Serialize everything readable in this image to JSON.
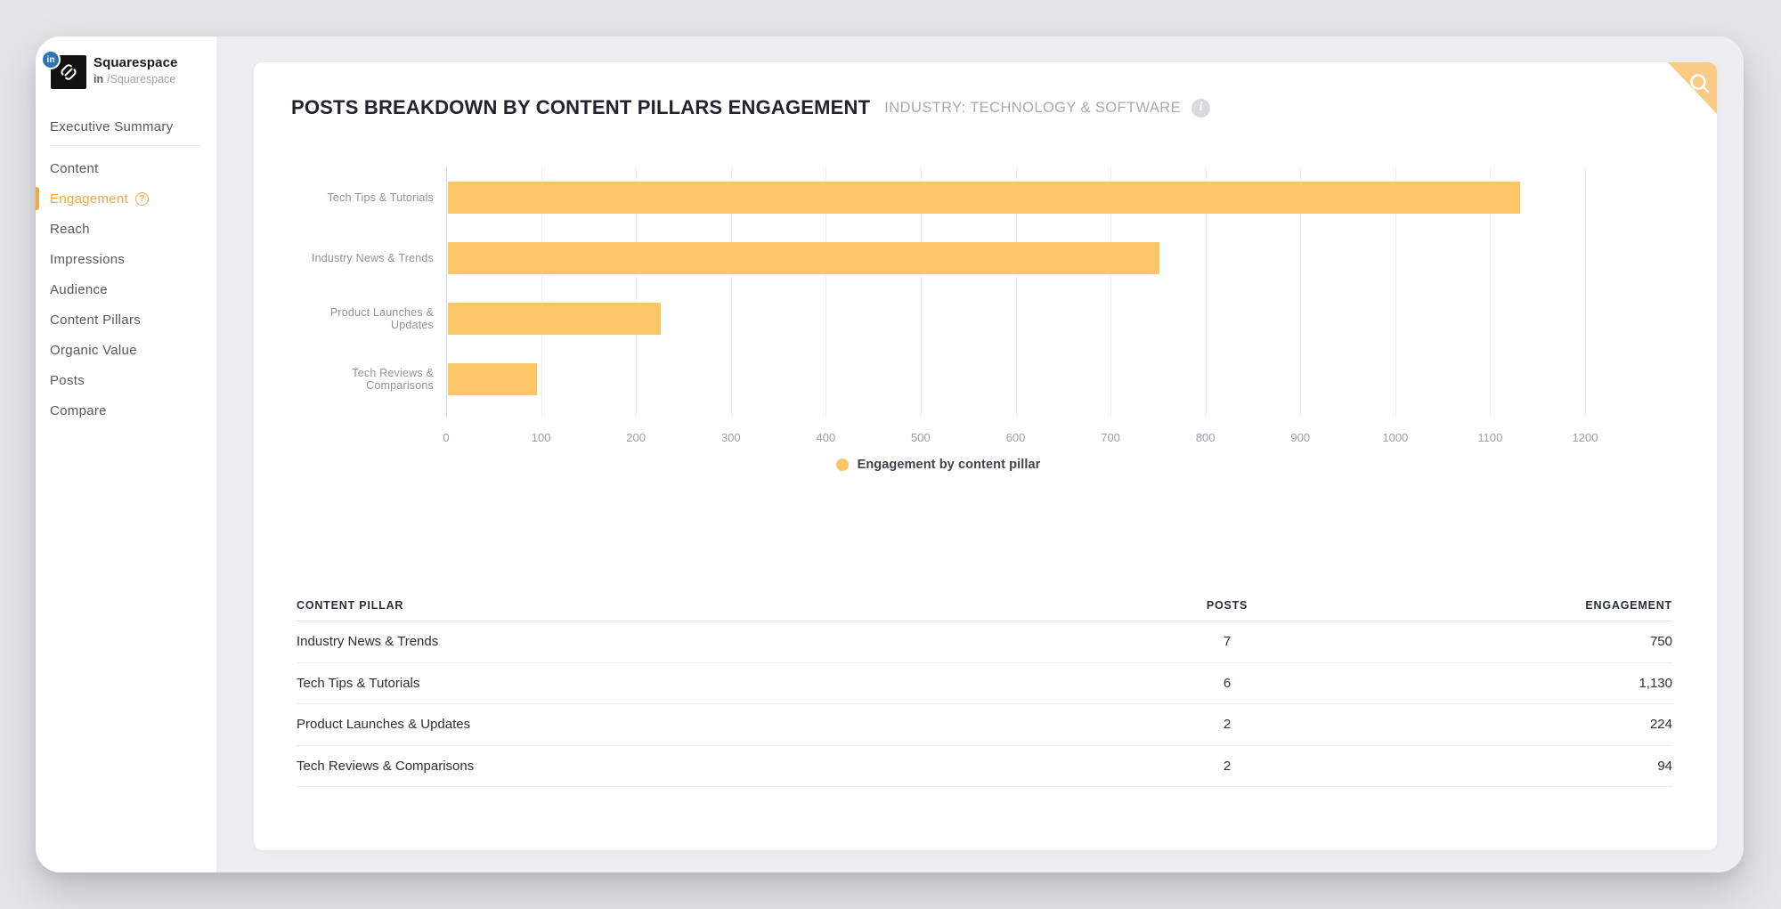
{
  "colors": {
    "bar_orange": "#FAC667",
    "active_orange": "#F4A73F",
    "corner_triangle": "#F8CB86",
    "linkedin_blue": "#2D77B5",
    "title_dark": "#21242C",
    "subtitle_gray": "#A6A9AF"
  },
  "icons": {
    "badge": "in",
    "info": "i",
    "help": "?",
    "search": "magnifier",
    "logo": "squarespace-mark"
  },
  "brand": {
    "name": "Squarespace",
    "handle_bold": "in",
    "handle": "/Squarespace"
  },
  "sidebar": {
    "items": [
      {
        "label": "Executive Summary",
        "active": false,
        "divider_after": true,
        "help_icon": false
      },
      {
        "label": "Content",
        "active": false,
        "divider_after": false,
        "help_icon": false
      },
      {
        "label": "Engagement",
        "active": true,
        "divider_after": false,
        "help_icon": true
      },
      {
        "label": "Reach",
        "active": false,
        "divider_after": false,
        "help_icon": false
      },
      {
        "label": "Impressions",
        "active": false,
        "divider_after": false,
        "help_icon": false
      },
      {
        "label": "Audience",
        "active": false,
        "divider_after": false,
        "help_icon": false
      },
      {
        "label": "Content Pillars",
        "active": false,
        "divider_after": false,
        "help_icon": false
      },
      {
        "label": "Organic Value",
        "active": false,
        "divider_after": false,
        "help_icon": false
      },
      {
        "label": "Posts",
        "active": false,
        "divider_after": false,
        "help_icon": false
      },
      {
        "label": "Compare",
        "active": false,
        "divider_after": false,
        "help_icon": false
      }
    ]
  },
  "header": {
    "title": "POSTS BREAKDOWN BY CONTENT PILLARS ENGAGEMENT",
    "subtitle": "INDUSTRY: TECHNOLOGY & SOFTWARE"
  },
  "chart_data": {
    "type": "bar",
    "orientation": "horizontal",
    "title": "Posts breakdown by content pillars engagement",
    "categories": [
      "Tech Tips & Tutorials",
      "Industry News & Trends",
      "Product Launches & Updates",
      "Tech Reviews & Comparisons"
    ],
    "values": [
      1130,
      750,
      224,
      94
    ],
    "series_name": "Engagement by content pillar",
    "xlabel": "",
    "ylabel": "",
    "xlim": [
      0,
      1200
    ],
    "xticks": [
      0,
      100,
      200,
      300,
      400,
      500,
      600,
      700,
      800,
      900,
      1000,
      1100,
      1200
    ],
    "grid": true,
    "legend_position": "bottom",
    "bar_color": "#FAC667"
  },
  "table": {
    "columns": [
      {
        "label": "CONTENT PILLAR",
        "align": "left"
      },
      {
        "label": "POSTS",
        "align": "center"
      },
      {
        "label": "ENGAGEMENT",
        "align": "right"
      }
    ],
    "rows": [
      {
        "pillar": "Industry News & Trends",
        "posts": "7",
        "engagement": "750"
      },
      {
        "pillar": "Tech Tips & Tutorials",
        "posts": "6",
        "engagement": "1,130"
      },
      {
        "pillar": "Product Launches & Updates",
        "posts": "2",
        "engagement": "224"
      },
      {
        "pillar": "Tech Reviews & Comparisons",
        "posts": "2",
        "engagement": "94"
      }
    ]
  }
}
